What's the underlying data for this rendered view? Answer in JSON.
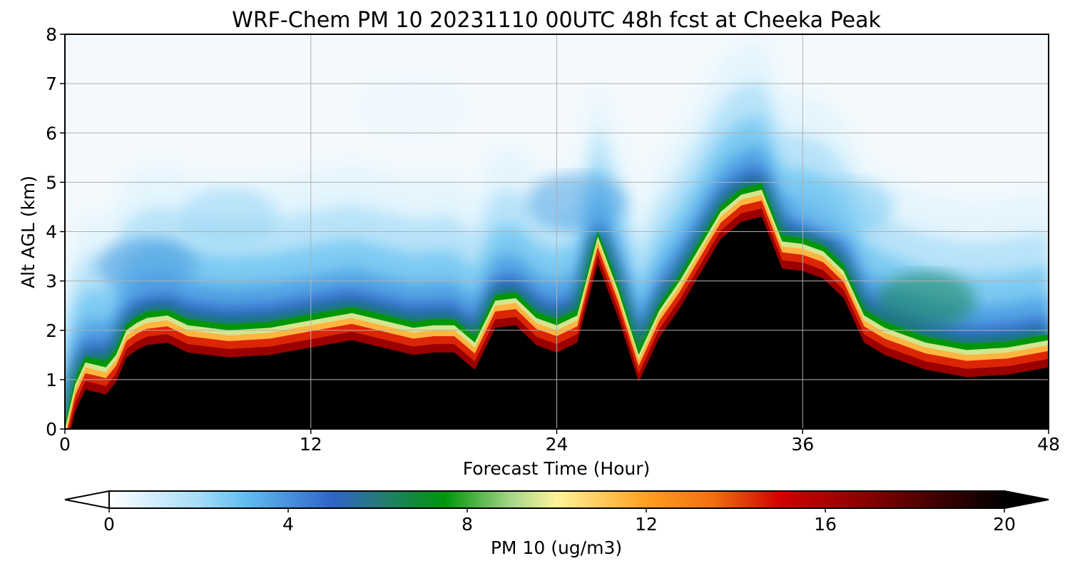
{
  "chart_data": {
    "type": "heatmap",
    "title": "WRF-Chem PM 10  20231110 00UTC 48h fcst at Cheeka Peak",
    "xlabel": "Forecast Time (Hour)",
    "ylabel": "Alt AGL (km)",
    "xlim": [
      0,
      48
    ],
    "ylim": [
      0,
      8
    ],
    "x_ticks": [
      "0",
      "12",
      "24",
      "36",
      "48"
    ],
    "y_ticks": [
      "0",
      "1",
      "2",
      "3",
      "4",
      "5",
      "6",
      "7",
      "8"
    ],
    "grid": true,
    "colorbar": {
      "label": "PM 10  (ug/m3)",
      "range": [
        0,
        20
      ],
      "ticks": [
        "0",
        "4",
        "8",
        "12",
        "16",
        "20"
      ],
      "extend": "both",
      "stops": [
        {
          "v": 0,
          "c": "#ffffff"
        },
        {
          "v": 2,
          "c": "#a6dcf7"
        },
        {
          "v": 3,
          "c": "#62bff0"
        },
        {
          "v": 5,
          "c": "#2f64c8"
        },
        {
          "v": 6,
          "c": "#267a7a"
        },
        {
          "v": 7.5,
          "c": "#00960a"
        },
        {
          "v": 9,
          "c": "#a8d68a"
        },
        {
          "v": 10,
          "c": "#fff39a"
        },
        {
          "v": 12,
          "c": "#ffa020"
        },
        {
          "v": 13.5,
          "c": "#f06e10"
        },
        {
          "v": 15,
          "c": "#d20000"
        },
        {
          "v": 16.5,
          "c": "#9a0000"
        },
        {
          "v": 18.5,
          "c": "#400000"
        },
        {
          "v": 20,
          "c": "#000000"
        }
      ]
    },
    "boundary_layer": {
      "x": [
        0,
        0.5,
        1,
        2,
        2.5,
        3,
        3.5,
        4,
        5,
        6,
        8,
        10,
        12,
        14,
        16,
        17,
        18,
        19,
        20,
        21,
        22,
        23,
        24,
        25,
        26,
        27,
        28,
        29,
        30,
        31,
        32,
        33,
        34,
        35,
        36,
        37,
        38,
        39,
        40,
        42,
        44,
        46,
        48
      ],
      "top_km": [
        0,
        0.9,
        1.35,
        1.25,
        1.5,
        2.0,
        2.15,
        2.25,
        2.3,
        2.1,
        2.0,
        2.05,
        2.2,
        2.35,
        2.15,
        2.05,
        2.1,
        2.1,
        1.75,
        2.6,
        2.65,
        2.25,
        2.1,
        2.3,
        3.9,
        2.8,
        1.5,
        2.4,
        3.0,
        3.7,
        4.4,
        4.75,
        4.85,
        3.8,
        3.75,
        3.6,
        3.2,
        2.3,
        2.05,
        1.75,
        1.6,
        1.65,
        1.8
      ]
    },
    "colorscale_points": [
      {
        "x": 4,
        "y": 3.3,
        "v": 3.8
      },
      {
        "x": 8,
        "y": 4.3,
        "v": 2.2
      },
      {
        "x": 17,
        "y": 6.5,
        "v": 0.4
      },
      {
        "x": 25,
        "y": 4.6,
        "v": 3.6
      },
      {
        "x": 38,
        "y": 4.5,
        "v": 2.6
      },
      {
        "x": 42,
        "y": 2.6,
        "v": 6.5
      }
    ]
  }
}
